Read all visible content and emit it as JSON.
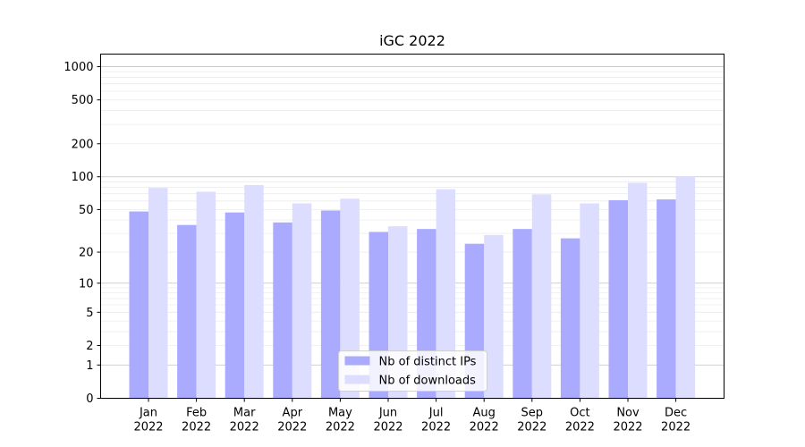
{
  "chart_data": {
    "type": "bar",
    "title": "iGC 2022",
    "xlabel": "",
    "ylabel": "",
    "scale": "symlog",
    "categories": [
      [
        "Jan",
        "2022"
      ],
      [
        "Feb",
        "2022"
      ],
      [
        "Mar",
        "2022"
      ],
      [
        "Apr",
        "2022"
      ],
      [
        "May",
        "2022"
      ],
      [
        "Jun",
        "2022"
      ],
      [
        "Jul",
        "2022"
      ],
      [
        "Aug",
        "2022"
      ],
      [
        "Sep",
        "2022"
      ],
      [
        "Oct",
        "2022"
      ],
      [
        "Nov",
        "2022"
      ],
      [
        "Dec",
        "2022"
      ]
    ],
    "series": [
      {
        "name": "Nb of distinct IPs",
        "color": "#aaaaff",
        "values": [
          48,
          36,
          47,
          38,
          49,
          31,
          33,
          24,
          33,
          27,
          61,
          62
        ]
      },
      {
        "name": "Nb of downloads",
        "color": "#ddddff",
        "values": [
          79,
          73,
          84,
          57,
          63,
          35,
          77,
          29,
          69,
          57,
          88,
          100
        ]
      }
    ],
    "yticks": [
      0,
      1,
      2,
      5,
      10,
      20,
      50,
      100,
      200,
      500,
      1000
    ],
    "ytick_labels": [
      "0",
      "1",
      "2",
      "5",
      "10",
      "20",
      "50",
      "100",
      "200",
      "500",
      "1000"
    ],
    "ylim": [
      0,
      1300
    ],
    "grid": true,
    "legend_position": "lower center"
  }
}
